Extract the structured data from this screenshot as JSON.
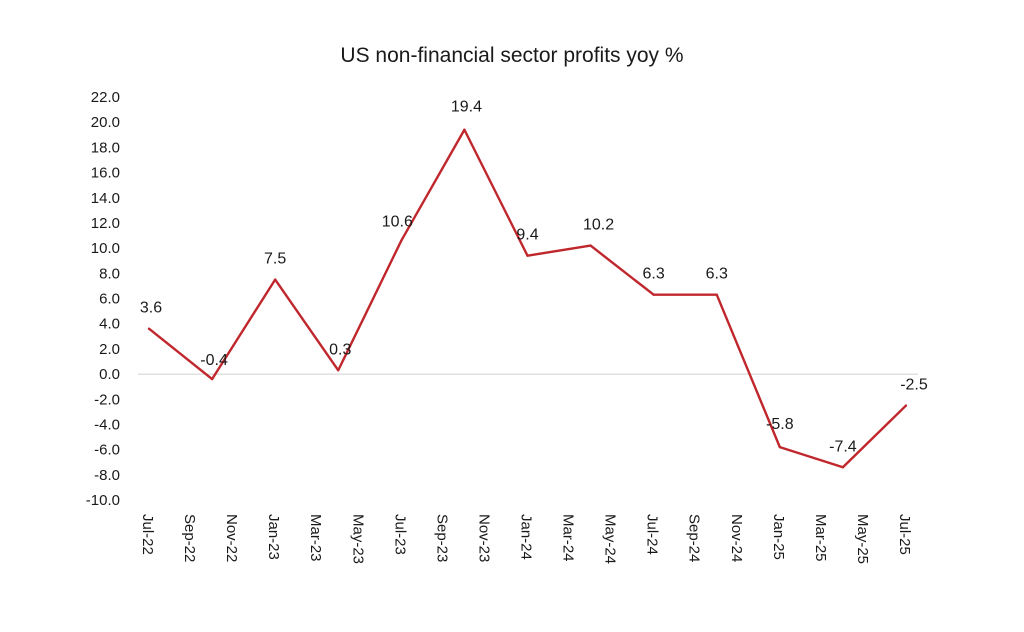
{
  "chart_data": {
    "type": "line",
    "title": "US non-financial sector profits yoy %",
    "xlabel": "",
    "ylabel": "",
    "ylim": [
      -10,
      22
    ],
    "ytick_step": 2,
    "grid": false,
    "legend": "none",
    "categories": [
      "Jul-22",
      "Sep-22",
      "Nov-22",
      "Jan-23",
      "Mar-23",
      "May-23",
      "Jul-23",
      "Sep-23",
      "Nov-23",
      "Jan-24",
      "Mar-24",
      "May-24",
      "Jul-24",
      "Sep-24",
      "Nov-24",
      "Jan-25",
      "Mar-25",
      "May-25",
      "Jul-25"
    ],
    "series": [
      {
        "name": "US non-financial sector profits yoy %",
        "color": "#c0272d",
        "x": [
          "Jul-22",
          "Oct-22",
          "Jan-23",
          "Apr-23",
          "Jul-23",
          "Oct-23",
          "Jan-24",
          "Apr-24",
          "Jul-24",
          "Oct-24",
          "Jan-25",
          "Apr-25",
          "Jul-25"
        ],
        "values": [
          3.6,
          -0.4,
          7.5,
          0.3,
          10.6,
          19.4,
          9.4,
          10.2,
          6.3,
          6.3,
          -5.8,
          -7.4,
          -2.5
        ],
        "labels": [
          "3.6",
          "-0.4",
          "7.5",
          "0.3",
          "10.6",
          "19.4",
          "9.4",
          "10.2",
          "6.3",
          "6.3",
          "-5.8",
          "-7.4",
          "-2.5"
        ]
      }
    ]
  }
}
